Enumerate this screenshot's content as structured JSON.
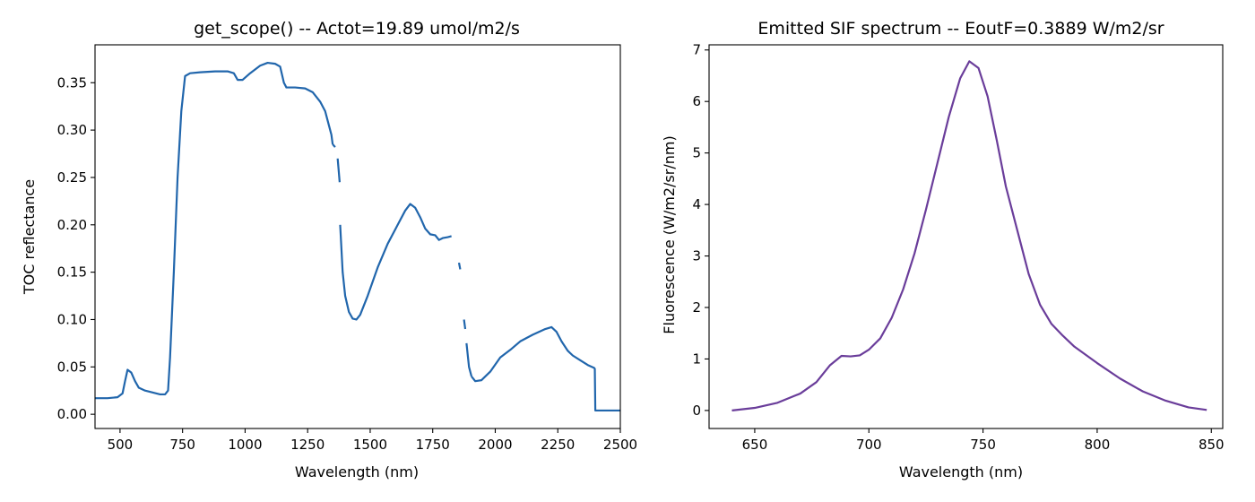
{
  "chart_data": [
    {
      "type": "line",
      "title": "get_scope() -- Actot=19.89 umol/m2/s",
      "xlabel": "Wavelength (nm)",
      "ylabel": "TOC reflectance",
      "xlim": [
        400,
        2500
      ],
      "ylim": [
        -0.015,
        0.39
      ],
      "xticks": [
        500,
        750,
        1000,
        1250,
        1500,
        1750,
        2000,
        2250,
        2500
      ],
      "xtick_labels": [
        "500",
        "750",
        "1000",
        "1250",
        "1500",
        "1750",
        "2000",
        "2250",
        "2500"
      ],
      "yticks": [
        0.0,
        0.05,
        0.1,
        0.15,
        0.2,
        0.25,
        0.3,
        0.35
      ],
      "ytick_labels": [
        "0.00",
        "0.05",
        "0.10",
        "0.15",
        "0.20",
        "0.25",
        "0.30",
        "0.35"
      ],
      "grid": false,
      "color": "#2166ac",
      "series": [
        {
          "segments": [
            [
              [
                400,
                0.017
              ],
              [
                450,
                0.017
              ],
              [
                490,
                0.018
              ],
              [
                510,
                0.022
              ],
              [
                520,
                0.035
              ],
              [
                530,
                0.047
              ],
              [
                545,
                0.044
              ],
              [
                560,
                0.035
              ],
              [
                575,
                0.028
              ],
              [
                600,
                0.025
              ],
              [
                630,
                0.023
              ],
              [
                660,
                0.021
              ],
              [
                680,
                0.021
              ],
              [
                692,
                0.025
              ],
              [
                700,
                0.06
              ],
              [
                715,
                0.15
              ],
              [
                730,
                0.25
              ],
              [
                745,
                0.32
              ],
              [
                760,
                0.357
              ],
              [
                780,
                0.36
              ],
              [
                820,
                0.361
              ],
              [
                880,
                0.362
              ],
              [
                930,
                0.362
              ],
              [
                955,
                0.36
              ],
              [
                970,
                0.353
              ],
              [
                990,
                0.353
              ],
              [
                1020,
                0.36
              ],
              [
                1060,
                0.368
              ],
              [
                1090,
                0.371
              ],
              [
                1120,
                0.37
              ],
              [
                1140,
                0.367
              ],
              [
                1155,
                0.35
              ],
              [
                1165,
                0.345
              ],
              [
                1200,
                0.345
              ],
              [
                1240,
                0.344
              ],
              [
                1270,
                0.34
              ],
              [
                1300,
                0.33
              ],
              [
                1320,
                0.32
              ],
              [
                1335,
                0.305
              ],
              [
                1345,
                0.295
              ],
              [
                1350,
                0.285
              ]
            ],
            [
              [
                1350,
                0.285
              ],
              [
                1360,
                0.282
              ]
            ],
            [
              [
                1370,
                0.27
              ],
              [
                1378,
                0.245
              ]
            ],
            [
              [
                1380,
                0.2
              ],
              [
                1390,
                0.15
              ],
              [
                1400,
                0.125
              ],
              [
                1415,
                0.108
              ],
              [
                1430,
                0.101
              ],
              [
                1445,
                0.1
              ],
              [
                1460,
                0.105
              ],
              [
                1490,
                0.125
              ],
              [
                1530,
                0.155
              ],
              [
                1570,
                0.18
              ],
              [
                1610,
                0.2
              ],
              [
                1640,
                0.215
              ],
              [
                1660,
                0.222
              ],
              [
                1680,
                0.218
              ],
              [
                1700,
                0.208
              ],
              [
                1720,
                0.196
              ],
              [
                1740,
                0.19
              ],
              [
                1760,
                0.189
              ],
              [
                1775,
                0.184
              ],
              [
                1790,
                0.186
              ],
              [
                1810,
                0.187
              ],
              [
                1825,
                0.188
              ]
            ],
            [
              [
                1855,
                0.16
              ],
              [
                1860,
                0.153
              ]
            ],
            [
              [
                1875,
                0.1
              ],
              [
                1880,
                0.09
              ]
            ],
            [
              [
                1885,
                0.075
              ],
              [
                1895,
                0.05
              ],
              [
                1905,
                0.04
              ]
            ],
            [
              [
                1905,
                0.04
              ],
              [
                1920,
                0.035
              ],
              [
                1945,
                0.036
              ],
              [
                1980,
                0.045
              ],
              [
                2020,
                0.06
              ],
              [
                2060,
                0.068
              ],
              [
                2100,
                0.077
              ],
              [
                2150,
                0.084
              ],
              [
                2200,
                0.09
              ],
              [
                2225,
                0.092
              ],
              [
                2245,
                0.087
              ],
              [
                2265,
                0.077
              ],
              [
                2290,
                0.067
              ],
              [
                2310,
                0.062
              ],
              [
                2340,
                0.057
              ],
              [
                2370,
                0.052
              ],
              [
                2395,
                0.049
              ],
              [
                2398,
                0.048
              ],
              [
                2400,
                0.004
              ],
              [
                2450,
                0.004
              ],
              [
                2500,
                0.004
              ]
            ]
          ]
        }
      ]
    },
    {
      "type": "line",
      "title": "Emitted SIF spectrum -- EoutF=0.3889 W/m2/sr",
      "xlabel": "Wavelength (nm)",
      "ylabel": "Fluorescence (W/m2/sr/nm)",
      "xlim": [
        630,
        855
      ],
      "ylim": [
        -0.35,
        7.1
      ],
      "xticks": [
        650,
        700,
        750,
        800,
        850
      ],
      "xtick_labels": [
        "650",
        "700",
        "750",
        "800",
        "850"
      ],
      "yticks": [
        0,
        1,
        2,
        3,
        4,
        5,
        6,
        7
      ],
      "ytick_labels": [
        "0",
        "1",
        "2",
        "3",
        "4",
        "5",
        "6",
        "7"
      ],
      "grid": false,
      "color": "#6a3d9a",
      "series": [
        {
          "segments": [
            [
              [
                640,
                0.0
              ],
              [
                650,
                0.05
              ],
              [
                660,
                0.15
              ],
              [
                670,
                0.33
              ],
              [
                677,
                0.55
              ],
              [
                683,
                0.88
              ],
              [
                688,
                1.06
              ],
              [
                692,
                1.05
              ],
              [
                696,
                1.07
              ],
              [
                700,
                1.18
              ],
              [
                705,
                1.4
              ],
              [
                710,
                1.8
              ],
              [
                715,
                2.35
              ],
              [
                720,
                3.05
              ],
              [
                725,
                3.9
              ],
              [
                730,
                4.8
              ],
              [
                735,
                5.7
              ],
              [
                740,
                6.45
              ],
              [
                744,
                6.78
              ],
              [
                748,
                6.65
              ],
              [
                752,
                6.1
              ],
              [
                756,
                5.25
              ],
              [
                760,
                4.35
              ],
              [
                765,
                3.5
              ],
              [
                770,
                2.65
              ],
              [
                775,
                2.05
              ],
              [
                780,
                1.68
              ],
              [
                785,
                1.45
              ],
              [
                790,
                1.24
              ],
              [
                800,
                0.92
              ],
              [
                810,
                0.62
              ],
              [
                820,
                0.37
              ],
              [
                830,
                0.19
              ],
              [
                840,
                0.06
              ],
              [
                848,
                0.01
              ]
            ]
          ]
        }
      ]
    }
  ]
}
